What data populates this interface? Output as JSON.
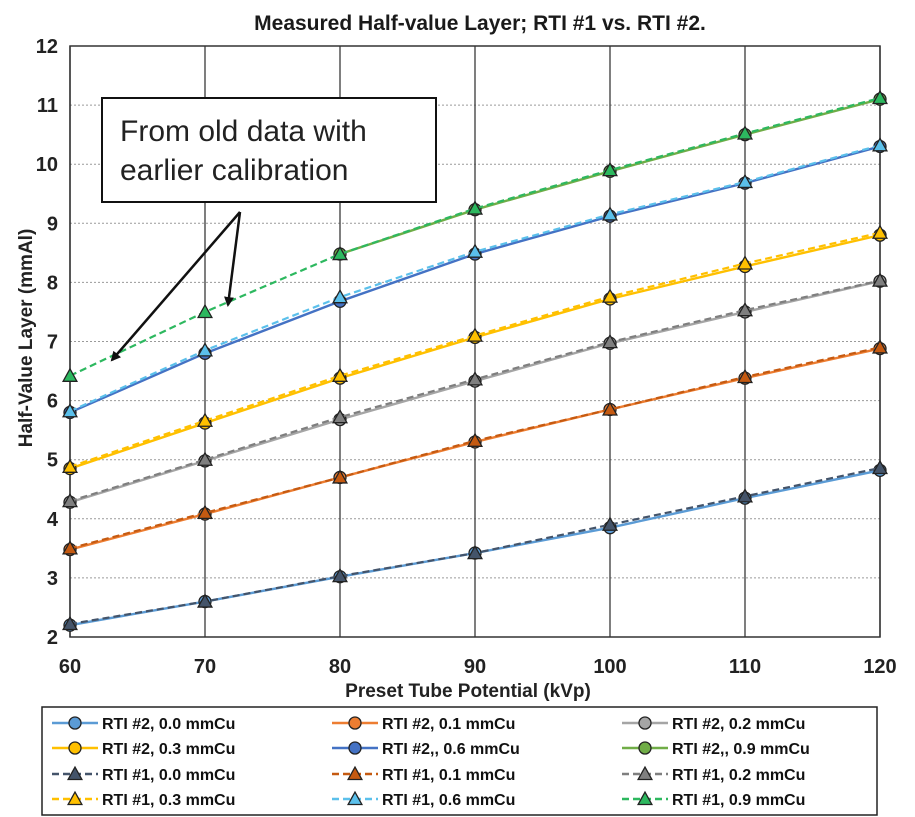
{
  "chart_data": {
    "type": "line",
    "title": "Measured Half-value Layer; RTI #1 vs. RTI #2.",
    "xlabel": "Preset Tube Potential (kVp)",
    "ylabel": "Half-Value Layer (mmAl)",
    "x": [
      60,
      70,
      80,
      90,
      100,
      110,
      120
    ],
    "xlim": [
      60,
      120
    ],
    "ylim": [
      2,
      12
    ],
    "xticks": [
      "60",
      "70",
      "80",
      "90",
      "100",
      "110",
      "120"
    ],
    "yticks": [
      "2",
      "3",
      "4",
      "5",
      "6",
      "7",
      "8",
      "9",
      "10",
      "11",
      "12"
    ],
    "grid": true,
    "legend_position": "bottom",
    "annotation": {
      "lines": [
        "From old data with",
        "earlier calibration"
      ]
    },
    "series": [
      {
        "name": "RTI #2, 0.0 mmCu",
        "color": "#5b9bd5",
        "marker": "circle",
        "dashed": false,
        "values": [
          2.2,
          2.6,
          3.02,
          3.42,
          3.85,
          4.35,
          4.82
        ]
      },
      {
        "name": "RTI #2, 0.1 mmCu",
        "color": "#ed7d31",
        "marker": "circle",
        "dashed": false,
        "values": [
          3.48,
          4.08,
          4.7,
          5.3,
          5.85,
          6.38,
          6.88
        ]
      },
      {
        "name": "RTI #2, 0.2 mmCu",
        "color": "#a5a5a5",
        "marker": "circle",
        "dashed": false,
        "values": [
          4.28,
          4.98,
          5.68,
          6.33,
          6.97,
          7.5,
          8.02
        ]
      },
      {
        "name": "RTI #2, 0.3 mmCu",
        "color": "#ffc000",
        "marker": "circle",
        "dashed": false,
        "values": [
          4.85,
          5.62,
          6.38,
          7.07,
          7.72,
          8.27,
          8.8
        ]
      },
      {
        "name": "RTI #2,, 0.6 mmCu",
        "color": "#4472c4",
        "marker": "circle",
        "dashed": false,
        "values": [
          5.8,
          6.8,
          7.68,
          8.48,
          9.12,
          9.68,
          10.3
        ]
      },
      {
        "name": "RTI #2,, 0.9 mmCu",
        "color": "#70ad47",
        "marker": "circle",
        "dashed": false,
        "values": [
          null,
          null,
          8.48,
          9.23,
          9.88,
          10.5,
          11.1
        ]
      },
      {
        "name": "RTI #1, 0.0 mmCu",
        "color": "#44546a",
        "marker": "triangle",
        "dashed": true,
        "values": [
          2.22,
          2.6,
          3.03,
          3.42,
          3.9,
          4.38,
          4.86
        ]
      },
      {
        "name": "RTI #1, 0.1 mmCu",
        "color": "#c55a11",
        "marker": "triangle",
        "dashed": true,
        "values": [
          3.5,
          4.1,
          4.7,
          5.32,
          5.85,
          6.4,
          6.9
        ]
      },
      {
        "name": "RTI #1, 0.2 mmCu",
        "color": "#7f7f7f",
        "marker": "triangle",
        "dashed": true,
        "values": [
          4.3,
          5.0,
          5.72,
          6.36,
          6.99,
          7.53,
          8.03
        ]
      },
      {
        "name": "RTI #1, 0.3 mmCu",
        "color": "#ffc000",
        "marker": "triangle",
        "dashed": true,
        "values": [
          4.88,
          5.66,
          6.42,
          7.1,
          7.76,
          8.32,
          8.84
        ]
      },
      {
        "name": "RTI #1, 0.6 mmCu",
        "color": "#5bc0eb",
        "marker": "triangle",
        "dashed": true,
        "values": [
          5.82,
          6.85,
          7.75,
          8.52,
          9.15,
          9.7,
          10.32
        ]
      },
      {
        "name": "RTI #1, 0.9 mmCu",
        "color": "#2db85f",
        "marker": "triangle",
        "dashed": true,
        "values": [
          6.42,
          7.5,
          8.48,
          9.25,
          9.9,
          10.52,
          11.12
        ]
      }
    ]
  }
}
